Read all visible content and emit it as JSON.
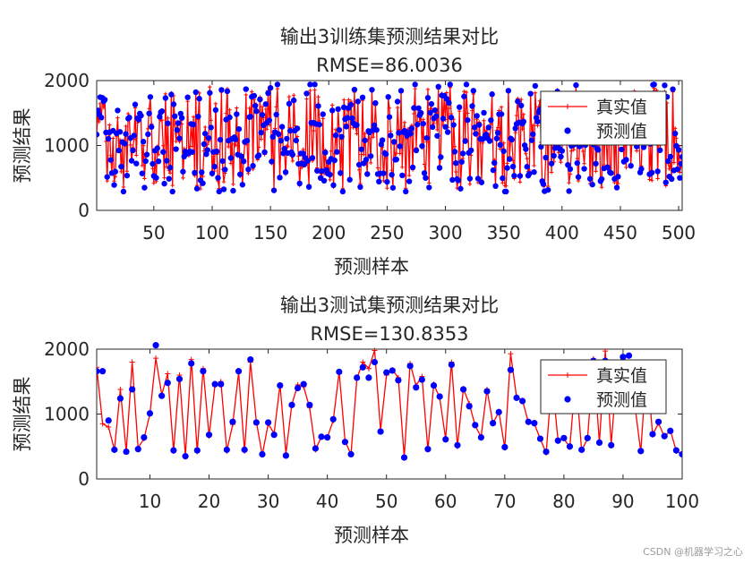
{
  "chart_data": [
    {
      "type": "line",
      "title": "输出3训练集预测结果对比",
      "subtitle": "RMSE=86.0036",
      "xlabel": "预测样本",
      "ylabel": "预测结果",
      "xlim": [
        1,
        503
      ],
      "ylim": [
        0,
        2000
      ],
      "xticks": [
        50,
        100,
        150,
        200,
        250,
        300,
        350,
        400,
        450,
        500
      ],
      "yticks": [
        0,
        1000,
        2000
      ],
      "legend": {
        "position": "top-right",
        "entries": [
          "真实值",
          "预测值"
        ]
      },
      "n_samples": 503,
      "value_range": [
        330,
        1920
      ],
      "series": [
        {
          "name": "真实值",
          "color": "#ff0000",
          "style": "line-plus"
        },
        {
          "name": "预测值",
          "color": "#0000ff",
          "style": "dot"
        }
      ]
    },
    {
      "type": "line",
      "title": "输出3测试集预测结果对比",
      "subtitle": "RMSE=130.8353",
      "xlabel": "预测样本",
      "ylabel": "预测结果",
      "xlim": [
        1,
        100
      ],
      "ylim": [
        0,
        2000
      ],
      "xticks": [
        10,
        20,
        30,
        40,
        50,
        60,
        70,
        80,
        90,
        100
      ],
      "yticks": [
        0,
        1000,
        2000
      ],
      "legend": {
        "position": "top-right",
        "entries": [
          "真实值",
          "预测值"
        ]
      },
      "x": [
        1,
        2,
        3,
        4,
        5,
        6,
        7,
        8,
        9,
        10,
        11,
        12,
        13,
        14,
        15,
        16,
        17,
        18,
        19,
        20,
        21,
        22,
        23,
        24,
        25,
        26,
        27,
        28,
        29,
        30,
        31,
        32,
        33,
        34,
        35,
        36,
        37,
        38,
        39,
        40,
        41,
        42,
        43,
        44,
        45,
        46,
        47,
        48,
        49,
        50,
        51,
        52,
        53,
        54,
        55,
        56,
        57,
        58,
        59,
        60,
        61,
        62,
        63,
        64,
        65,
        66,
        67,
        68,
        69,
        70,
        71,
        72,
        73,
        74,
        75,
        76,
        77,
        78,
        79,
        80,
        81,
        82,
        83,
        84,
        85,
        86,
        87,
        88,
        89,
        90,
        91,
        92,
        93,
        94,
        95,
        96,
        97,
        98,
        99,
        100
      ],
      "series": [
        {
          "name": "真实值",
          "color": "#ff0000",
          "style": "line-plus",
          "values": [
            1720,
            850,
            800,
            450,
            1380,
            420,
            1800,
            480,
            620,
            1000,
            1860,
            1300,
            1620,
            430,
            1600,
            360,
            1840,
            420,
            1700,
            660,
            1440,
            1500,
            430,
            840,
            1640,
            430,
            1800,
            880,
            370,
            850,
            700,
            1450,
            390,
            1150,
            1450,
            1420,
            1100,
            450,
            650,
            640,
            900,
            1650,
            580,
            380,
            1550,
            1800,
            1700,
            1980,
            750,
            1600,
            1680,
            1560,
            340,
            1780,
            1440,
            1580,
            450,
            1460,
            1250,
            620,
            1800,
            500,
            1390,
            1160,
            820,
            650,
            1380,
            850,
            1040,
            480,
            1930,
            1260,
            1210,
            870,
            850,
            620,
            400,
            1550,
            600,
            620,
            490,
            1580,
            440,
            620,
            1850,
            560,
            1970,
            540,
            1680,
            1850,
            1680,
            1130,
            420,
            1780,
            680,
            860,
            650,
            750,
            430,
            380
          ],
          "value_labels": []
        },
        {
          "name": "预测值",
          "color": "#0000ff",
          "style": "dot",
          "values": [
            1660,
            1660,
            900,
            450,
            1240,
            420,
            1380,
            460,
            640,
            1010,
            2060,
            1280,
            1480,
            440,
            1540,
            350,
            1780,
            440,
            1660,
            680,
            1460,
            1460,
            450,
            880,
            1660,
            450,
            1840,
            870,
            380,
            870,
            680,
            1440,
            360,
            1140,
            1400,
            1460,
            1140,
            470,
            650,
            640,
            920,
            1650,
            570,
            380,
            1560,
            1720,
            1560,
            1800,
            730,
            1640,
            1670,
            1520,
            330,
            1740,
            1410,
            1530,
            460,
            1440,
            1270,
            610,
            1760,
            520,
            1380,
            1120,
            830,
            640,
            1350,
            860,
            1030,
            490,
            1680,
            1250,
            1200,
            880,
            860,
            620,
            420,
            1560,
            590,
            630,
            500,
            1560,
            450,
            630,
            1820,
            560,
            1820,
            520,
            1660,
            1880,
            1900,
            1120,
            430,
            1700,
            690,
            880,
            660,
            740,
            440,
            380
          ]
        }
      ]
    }
  ],
  "watermark": "CSDN @机器学习之心"
}
